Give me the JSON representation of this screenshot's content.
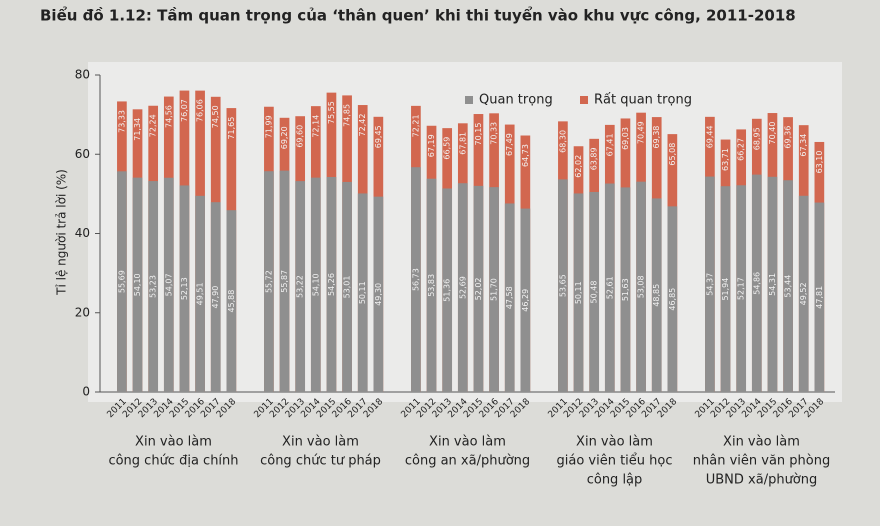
{
  "chart_data": {
    "type": "bar",
    "title": "Biểu đồ 1.12: Tầm quan trọng của ‘thân quen’ khi thi tuyển vào khu vực công, 2011-2018",
    "y_label": "Tỉ lệ người trả lời (%)",
    "ylim": [
      0,
      80
    ],
    "yticks": [
      0,
      20,
      40,
      60,
      80
    ],
    "grid": false,
    "legend": "top-right",
    "group_labels": [
      [
        "Xin vào làm",
        "công chức địa chính"
      ],
      [
        "Xin vào làm",
        "công chức tư pháp"
      ],
      [
        "Xin vào làm",
        "công an xã/phường"
      ],
      [
        "Xin vào làm",
        "giáo viên tiểu học",
        "công lập"
      ],
      [
        "Xin vào làm",
        "nhân viên văn phòng",
        "UBND xã/phường"
      ]
    ],
    "categories": [
      "2011",
      "2012",
      "2013",
      "2014",
      "2015",
      "2016",
      "2017",
      "2018",
      "2011",
      "2012",
      "2013",
      "2014",
      "2015",
      "2016",
      "2017",
      "2018",
      "2011",
      "2012",
      "2013",
      "2014",
      "2015",
      "2016",
      "2017",
      "2018",
      "2011",
      "2012",
      "2013",
      "2014",
      "2015",
      "2016",
      "2017",
      "2018",
      "2011",
      "2012",
      "2013",
      "2014",
      "2015",
      "2016",
      "2017",
      "2018"
    ],
    "series": [
      {
        "name": "Quan trọng",
        "color": "#8f8f8f",
        "values": [
          55.69,
          54.1,
          53.23,
          54.07,
          52.13,
          49.51,
          47.9,
          45.88,
          55.72,
          55.87,
          53.22,
          54.1,
          54.26,
          53.01,
          50.11,
          49.3,
          56.73,
          53.83,
          51.36,
          52.69,
          52.02,
          51.7,
          47.58,
          46.29,
          53.65,
          50.11,
          50.48,
          52.61,
          51.63,
          53.08,
          48.85,
          46.85,
          54.37,
          51.94,
          52.17,
          54.86,
          54.31,
          53.44,
          49.52,
          47.81
        ],
        "value_labels": [
          "55,69",
          "54,10",
          "53,23",
          "54,07",
          "52,13",
          "49,51",
          "47,90",
          "45,88",
          "55,72",
          "55,87",
          "53,22",
          "54,10",
          "54,26",
          "53,01",
          "50,11",
          "49,30",
          "56,73",
          "53,83",
          "51,36",
          "52,69",
          "52,02",
          "51,70",
          "47,58",
          "46,29",
          "53,65",
          "50,11",
          "50,48",
          "52,61",
          "51,63",
          "53,08",
          "48,85",
          "46,85",
          "54,37",
          "51,94",
          "52,17",
          "54,86",
          "54,31",
          "53,44",
          "49,52",
          "47,81"
        ]
      },
      {
        "name": "Rất quan trọng",
        "color": "#d2674f",
        "values": [
          73.33,
          71.34,
          72.24,
          74.56,
          76.07,
          76.06,
          74.5,
          71.65,
          71.99,
          69.2,
          69.6,
          72.14,
          75.55,
          74.85,
          72.42,
          69.45,
          72.21,
          67.19,
          66.59,
          67.81,
          70.15,
          70.33,
          67.49,
          64.73,
          68.3,
          62.02,
          63.89,
          67.41,
          69.03,
          70.49,
          69.38,
          65.08,
          69.44,
          63.71,
          66.27,
          68.95,
          70.4,
          69.36,
          67.34,
          63.1
        ],
        "value_labels": [
          "73,33",
          "71,34",
          "72,24",
          "74,56",
          "76,07",
          "76,06",
          "74,50",
          "71,65",
          "71,99",
          "69,20",
          "69,60",
          "72,14",
          "75,55",
          "74,85",
          "72,42",
          "69,45",
          "72,21",
          "67,19",
          "66,59",
          "67,81",
          "70,15",
          "70,33",
          "67,49",
          "64,73",
          "68,30",
          "62,02",
          "63,89",
          "67,41",
          "69,03",
          "70,49",
          "69,38",
          "65,08",
          "69,44",
          "63,71",
          "66,27",
          "68,95",
          "70,40",
          "69,36",
          "67,34",
          "63,10"
        ]
      }
    ]
  }
}
